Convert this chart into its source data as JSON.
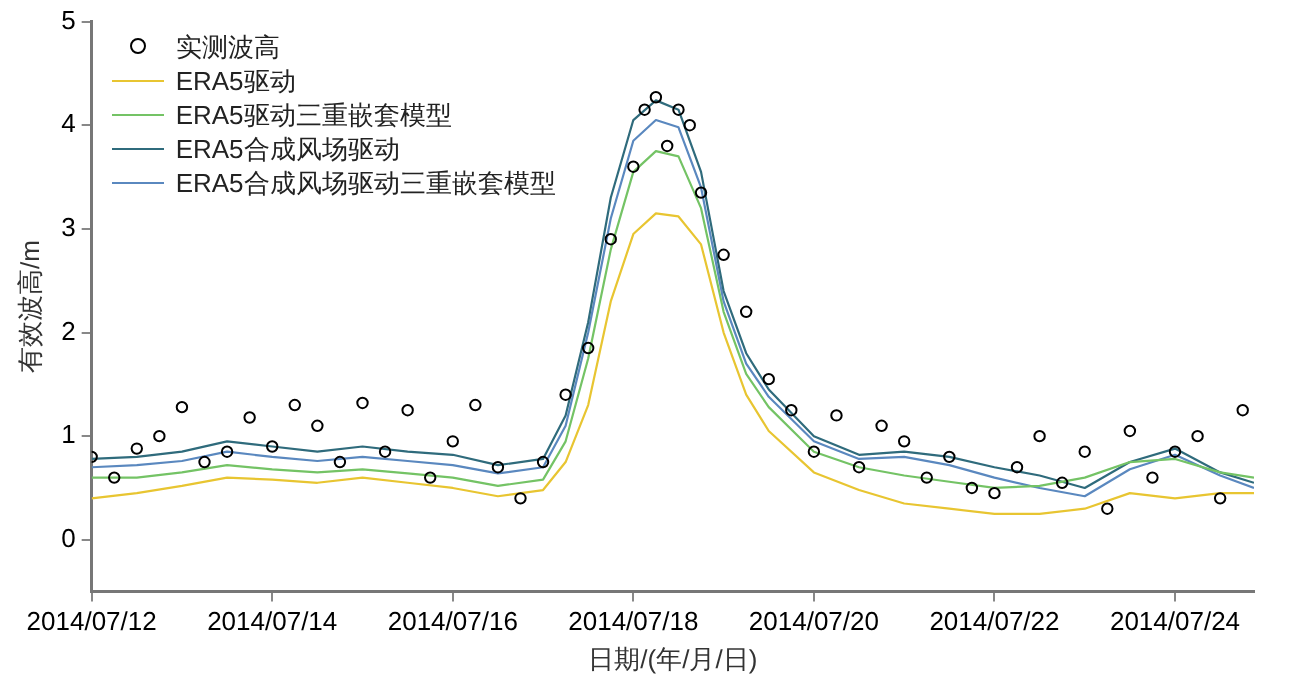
{
  "chart_data": {
    "type": "line",
    "xlabel": "日期/(年/月/日)",
    "ylabel": "有效波高/m",
    "xlim": [
      "2014-07-12",
      "2014-07-24T21:00"
    ],
    "xticks": [
      {
        "value": "2014-07-12",
        "label": "2014/07/12"
      },
      {
        "value": "2014-07-14",
        "label": "2014/07/14"
      },
      {
        "value": "2014-07-16",
        "label": "2014/07/16"
      },
      {
        "value": "2014-07-18",
        "label": "2014/07/18"
      },
      {
        "value": "2014-07-20",
        "label": "2014/07/20"
      },
      {
        "value": "2014-07-22",
        "label": "2014/07/22"
      },
      {
        "value": "2014-07-24",
        "label": "2014/07/24"
      }
    ],
    "ylim": [
      -0.5,
      5
    ],
    "yticks": [
      0,
      1,
      2,
      3,
      4,
      5
    ],
    "legend": "top left",
    "x": [
      "2014-07-12T00:00",
      "2014-07-12T12:00",
      "2014-07-13T00:00",
      "2014-07-13T12:00",
      "2014-07-14T00:00",
      "2014-07-14T12:00",
      "2014-07-15T00:00",
      "2014-07-15T12:00",
      "2014-07-16T00:00",
      "2014-07-16T12:00",
      "2014-07-17T00:00",
      "2014-07-17T06:00",
      "2014-07-17T12:00",
      "2014-07-17T18:00",
      "2014-07-18T00:00",
      "2014-07-18T06:00",
      "2014-07-18T12:00",
      "2014-07-18T18:00",
      "2014-07-19T00:00",
      "2014-07-19T06:00",
      "2014-07-19T12:00",
      "2014-07-20T00:00",
      "2014-07-20T12:00",
      "2014-07-21T00:00",
      "2014-07-21T12:00",
      "2014-07-22T00:00",
      "2014-07-22T12:00",
      "2014-07-23T00:00",
      "2014-07-23T12:00",
      "2014-07-24T00:00",
      "2014-07-24T12:00",
      "2014-07-24T21:00"
    ],
    "series": [
      {
        "name": "实测波高",
        "type": "scatter",
        "marker": "circle",
        "color": "#000000",
        "x": [
          "2014-07-12T00:00",
          "2014-07-12T06:00",
          "2014-07-12T12:00",
          "2014-07-12T18:00",
          "2014-07-13T00:00",
          "2014-07-13T06:00",
          "2014-07-13T12:00",
          "2014-07-13T18:00",
          "2014-07-14T00:00",
          "2014-07-14T06:00",
          "2014-07-14T12:00",
          "2014-07-14T18:00",
          "2014-07-15T00:00",
          "2014-07-15T06:00",
          "2014-07-15T12:00",
          "2014-07-15T18:00",
          "2014-07-16T00:00",
          "2014-07-16T06:00",
          "2014-07-16T12:00",
          "2014-07-16T18:00",
          "2014-07-17T00:00",
          "2014-07-17T06:00",
          "2014-07-17T12:00",
          "2014-07-17T18:00",
          "2014-07-18T00:00",
          "2014-07-18T03:00",
          "2014-07-18T06:00",
          "2014-07-18T09:00",
          "2014-07-18T12:00",
          "2014-07-18T15:00",
          "2014-07-18T18:00",
          "2014-07-19T00:00",
          "2014-07-19T06:00",
          "2014-07-19T12:00",
          "2014-07-19T18:00",
          "2014-07-20T00:00",
          "2014-07-20T06:00",
          "2014-07-20T12:00",
          "2014-07-20T18:00",
          "2014-07-21T00:00",
          "2014-07-21T06:00",
          "2014-07-21T12:00",
          "2014-07-21T18:00",
          "2014-07-22T00:00",
          "2014-07-22T06:00",
          "2014-07-22T12:00",
          "2014-07-22T18:00",
          "2014-07-23T00:00",
          "2014-07-23T06:00",
          "2014-07-23T12:00",
          "2014-07-23T18:00",
          "2014-07-24T00:00",
          "2014-07-24T06:00",
          "2014-07-24T12:00",
          "2014-07-24T18:00"
        ],
        "values": [
          0.8,
          0.6,
          0.88,
          1.0,
          1.28,
          0.75,
          0.85,
          1.18,
          0.9,
          1.3,
          1.1,
          0.75,
          1.32,
          0.85,
          1.25,
          0.6,
          0.95,
          1.3,
          0.7,
          0.4,
          0.75,
          1.4,
          1.85,
          2.9,
          3.6,
          4.15,
          4.27,
          3.8,
          4.15,
          4.0,
          3.35,
          2.75,
          2.2,
          1.55,
          1.25,
          0.85,
          1.2,
          0.7,
          1.1,
          0.95,
          0.6,
          0.8,
          0.5,
          0.45,
          0.7,
          1.0,
          0.55,
          0.85,
          0.3,
          1.05,
          0.6,
          0.85,
          1.0,
          0.4,
          1.25
        ]
      },
      {
        "name": "ERA5驱动",
        "color": "#e8c531",
        "marker": "none",
        "values": [
          0.4,
          0.45,
          0.52,
          0.6,
          0.58,
          0.55,
          0.6,
          0.55,
          0.5,
          0.42,
          0.48,
          0.75,
          1.3,
          2.3,
          2.95,
          3.15,
          3.12,
          2.85,
          2.0,
          1.4,
          1.05,
          0.65,
          0.48,
          0.35,
          0.3,
          0.25,
          0.25,
          0.3,
          0.45,
          0.4,
          0.45,
          0.45
        ]
      },
      {
        "name": "ERA5驱动三重嵌套模型",
        "color": "#74c365",
        "marker": "none",
        "values": [
          0.6,
          0.6,
          0.65,
          0.72,
          0.68,
          0.65,
          0.68,
          0.64,
          0.6,
          0.52,
          0.58,
          0.95,
          1.75,
          2.8,
          3.55,
          3.75,
          3.7,
          3.2,
          2.2,
          1.6,
          1.28,
          0.85,
          0.7,
          0.62,
          0.56,
          0.5,
          0.52,
          0.6,
          0.75,
          0.78,
          0.65,
          0.6
        ]
      },
      {
        "name": "ERA5合成风场驱动",
        "color": "#2f6b7c",
        "marker": "none",
        "values": [
          0.78,
          0.8,
          0.85,
          0.95,
          0.9,
          0.85,
          0.9,
          0.85,
          0.82,
          0.72,
          0.78,
          1.2,
          2.1,
          3.3,
          4.05,
          4.24,
          4.15,
          3.55,
          2.4,
          1.8,
          1.45,
          1.0,
          0.82,
          0.85,
          0.8,
          0.7,
          0.62,
          0.5,
          0.75,
          0.88,
          0.65,
          0.55
        ]
      },
      {
        "name": "ERA5合成风场驱动三重嵌套模型",
        "color": "#5a88bf",
        "marker": "none",
        "values": [
          0.7,
          0.72,
          0.76,
          0.85,
          0.8,
          0.76,
          0.8,
          0.76,
          0.72,
          0.64,
          0.7,
          1.1,
          2.0,
          3.1,
          3.85,
          4.05,
          3.98,
          3.4,
          2.3,
          1.7,
          1.38,
          0.95,
          0.78,
          0.8,
          0.72,
          0.6,
          0.5,
          0.42,
          0.68,
          0.82,
          0.62,
          0.5
        ]
      }
    ]
  }
}
